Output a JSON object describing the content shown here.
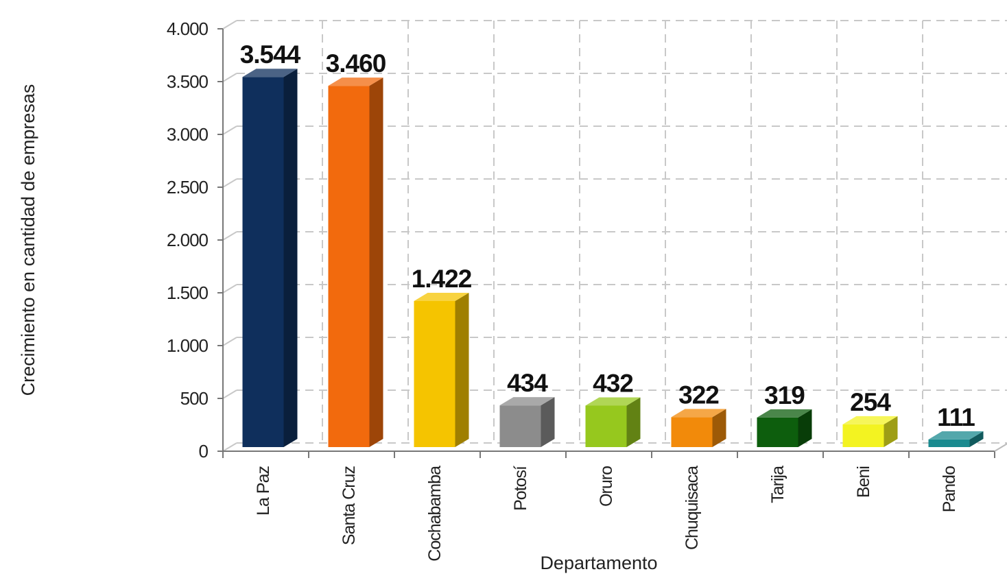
{
  "chart_data": {
    "type": "bar",
    "title": "",
    "xlabel": "Departamento",
    "ylabel": "Crecimiento en cantidad de empresas",
    "ylim": [
      0,
      4000
    ],
    "ytick_values": [
      0,
      500,
      1000,
      1500,
      2000,
      2500,
      3000,
      3500,
      4000
    ],
    "yticks": [
      "0",
      "500",
      "1.000",
      "1.500",
      "2.000",
      "2.500",
      "3.000",
      "3.500",
      "4.000"
    ],
    "grid": true,
    "categories": [
      "La Paz",
      "Santa Cruz",
      "Cochabamba",
      "Potosí",
      "Oruro",
      "Chuquisaca",
      "Tarija",
      "Beni",
      "Pando"
    ],
    "values": [
      3544,
      3460,
      1422,
      434,
      432,
      322,
      319,
      254,
      111
    ],
    "value_labels": [
      "3.544",
      "3.460",
      "1.422",
      "434",
      "432",
      "322",
      "319",
      "254",
      "111"
    ],
    "bar_colors": [
      "#0f2f5c",
      "#f26a0d",
      "#f5c400",
      "#8c8c8c",
      "#96c81e",
      "#f28a0a",
      "#0d5e0d",
      "#f3f321",
      "#1a8a8f"
    ]
  }
}
